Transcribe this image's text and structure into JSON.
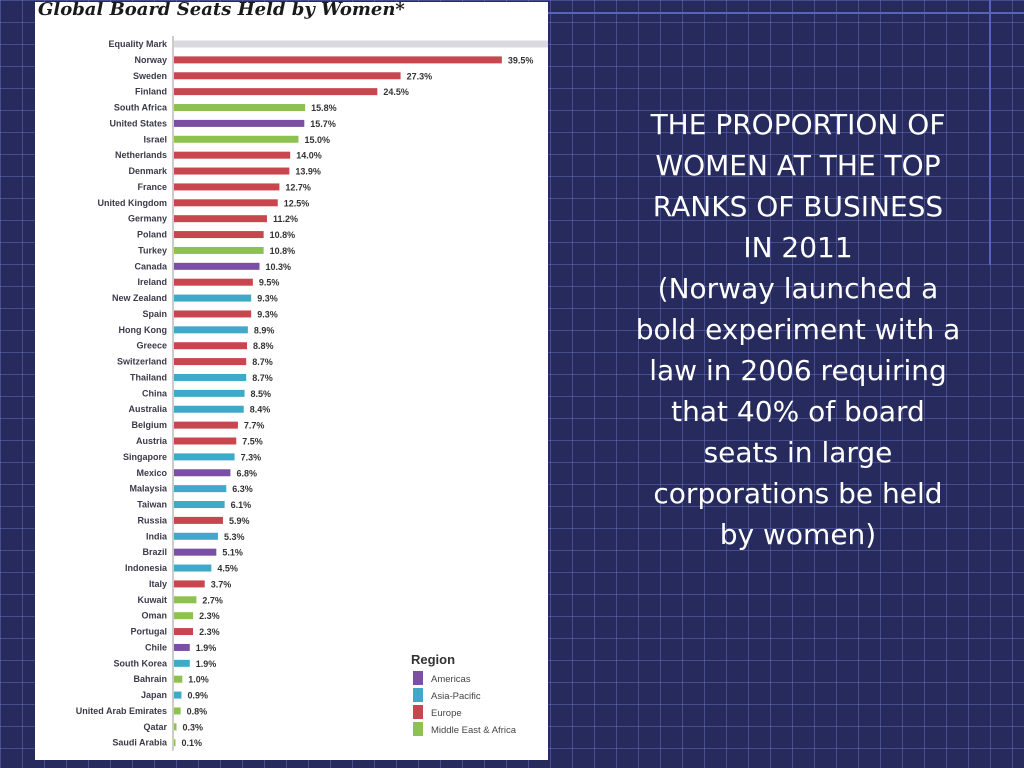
{
  "slide": {
    "heading_lines": [
      "THE PROPORTION OF",
      "WOMEN AT THE TOP",
      "RANKS OF BUSINESS",
      "IN 2011"
    ],
    "note_lines": [
      "(Norway launched a",
      "bold experiment with a",
      "law in 2006 requiring",
      "that 40% of board",
      "seats in large",
      "corporations be held",
      "by women)"
    ]
  },
  "chart_data": {
    "type": "bar",
    "orientation": "horizontal",
    "title": "Global Board Seats Held by Women*",
    "xlim": [
      0,
      40
    ],
    "legend": {
      "title": "Region",
      "placement": "bottom-right",
      "entries": [
        {
          "name": "Americas",
          "color": "#7b4fa3"
        },
        {
          "name": "Asia-Pacific",
          "color": "#3fa9c9"
        },
        {
          "name": "Europe",
          "color": "#c8474f"
        },
        {
          "name": "Middle East & Africa",
          "color": "#8dc251"
        }
      ]
    },
    "reference": {
      "name": "Equality Mark",
      "value": 50,
      "color": "#d9d9df"
    },
    "bars": [
      {
        "country": "Norway",
        "value": 39.5,
        "label": "39.5%",
        "region": "Europe"
      },
      {
        "country": "Sweden",
        "value": 27.3,
        "label": "27.3%",
        "region": "Europe"
      },
      {
        "country": "Finland",
        "value": 24.5,
        "label": "24.5%",
        "region": "Europe"
      },
      {
        "country": "South Africa",
        "value": 15.8,
        "label": "15.8%",
        "region": "Middle East & Africa"
      },
      {
        "country": "United States",
        "value": 15.7,
        "label": "15.7%",
        "region": "Americas"
      },
      {
        "country": "Israel",
        "value": 15.0,
        "label": "15.0%",
        "region": "Middle East & Africa"
      },
      {
        "country": "Netherlands",
        "value": 14.0,
        "label": "14.0%",
        "region": "Europe"
      },
      {
        "country": "Denmark",
        "value": 13.9,
        "label": "13.9%",
        "region": "Europe"
      },
      {
        "country": "France",
        "value": 12.7,
        "label": "12.7%",
        "region": "Europe"
      },
      {
        "country": "United Kingdom",
        "value": 12.5,
        "label": "12.5%",
        "region": "Europe"
      },
      {
        "country": "Germany",
        "value": 11.2,
        "label": "11.2%",
        "region": "Europe"
      },
      {
        "country": "Poland",
        "value": 10.8,
        "label": "10.8%",
        "region": "Europe"
      },
      {
        "country": "Turkey",
        "value": 10.8,
        "label": "10.8%",
        "region": "Middle East & Africa"
      },
      {
        "country": "Canada",
        "value": 10.3,
        "label": "10.3%",
        "region": "Americas"
      },
      {
        "country": "Ireland",
        "value": 9.5,
        "label": "9.5%",
        "region": "Europe"
      },
      {
        "country": "New Zealand",
        "value": 9.3,
        "label": "9.3%",
        "region": "Asia-Pacific"
      },
      {
        "country": "Spain",
        "value": 9.3,
        "label": "9.3%",
        "region": "Europe"
      },
      {
        "country": "Hong Kong",
        "value": 8.9,
        "label": "8.9%",
        "region": "Asia-Pacific"
      },
      {
        "country": "Greece",
        "value": 8.8,
        "label": "8.8%",
        "region": "Europe"
      },
      {
        "country": "Switzerland",
        "value": 8.7,
        "label": "8.7%",
        "region": "Europe"
      },
      {
        "country": "Thailand",
        "value": 8.7,
        "label": "8.7%",
        "region": "Asia-Pacific"
      },
      {
        "country": "China",
        "value": 8.5,
        "label": "8.5%",
        "region": "Asia-Pacific"
      },
      {
        "country": "Australia",
        "value": 8.4,
        "label": "8.4%",
        "region": "Asia-Pacific"
      },
      {
        "country": "Belgium",
        "value": 7.7,
        "label": "7.7%",
        "region": "Europe"
      },
      {
        "country": "Austria",
        "value": 7.5,
        "label": "7.5%",
        "region": "Europe"
      },
      {
        "country": "Singapore",
        "value": 7.3,
        "label": "7.3%",
        "region": "Asia-Pacific"
      },
      {
        "country": "Mexico",
        "value": 6.8,
        "label": "6.8%",
        "region": "Americas"
      },
      {
        "country": "Malaysia",
        "value": 6.3,
        "label": "6.3%",
        "region": "Asia-Pacific"
      },
      {
        "country": "Taiwan",
        "value": 6.1,
        "label": "6.1%",
        "region": "Asia-Pacific"
      },
      {
        "country": "Russia",
        "value": 5.9,
        "label": "5.9%",
        "region": "Europe"
      },
      {
        "country": "India",
        "value": 5.3,
        "label": "5.3%",
        "region": "Asia-Pacific"
      },
      {
        "country": "Brazil",
        "value": 5.1,
        "label": "5.1%",
        "region": "Americas"
      },
      {
        "country": "Indonesia",
        "value": 4.5,
        "label": "4.5%",
        "region": "Asia-Pacific"
      },
      {
        "country": "Italy",
        "value": 3.7,
        "label": "3.7%",
        "region": "Europe"
      },
      {
        "country": "Kuwait",
        "value": 2.7,
        "label": "2.7%",
        "region": "Middle East & Africa"
      },
      {
        "country": "Oman",
        "value": 2.3,
        "label": "2.3%",
        "region": "Middle East & Africa"
      },
      {
        "country": "Portugal",
        "value": 2.3,
        "label": "2.3%",
        "region": "Europe"
      },
      {
        "country": "Chile",
        "value": 1.9,
        "label": "1.9%",
        "region": "Americas"
      },
      {
        "country": "South Korea",
        "value": 1.9,
        "label": "1.9%",
        "region": "Asia-Pacific"
      },
      {
        "country": "Bahrain",
        "value": 1.0,
        "label": "1.0%",
        "region": "Middle East & Africa"
      },
      {
        "country": "Japan",
        "value": 0.9,
        "label": "0.9%",
        "region": "Asia-Pacific"
      },
      {
        "country": "United Arab Emirates",
        "value": 0.8,
        "label": "0.8%",
        "region": "Middle East & Africa"
      },
      {
        "country": "Qatar",
        "value": 0.3,
        "label": "0.3%",
        "region": "Middle East & Africa"
      },
      {
        "country": "Saudi Arabia",
        "value": 0.1,
        "label": "0.1%",
        "region": "Middle East & Africa"
      }
    ]
  }
}
